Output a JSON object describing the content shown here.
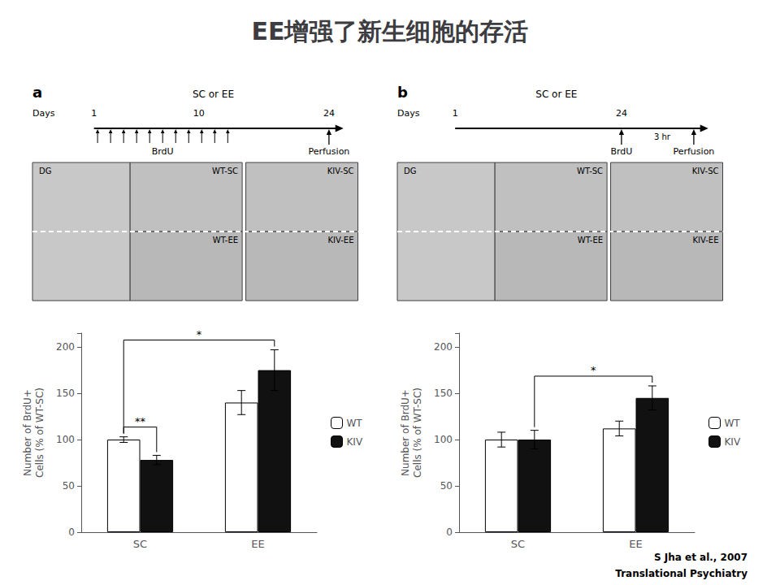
{
  "title": "EE增强了新生细胞的存活",
  "annotations": [
    "S Jha et al., 2007",
    "Translational Psychiatry"
  ],
  "chart_data": [
    {
      "type": "bar",
      "categories": [
        "SC",
        "EE"
      ],
      "series": [
        {
          "name": "WT",
          "color": "#FFFFFF",
          "values": [
            100,
            140
          ],
          "errors": [
            3,
            13
          ]
        },
        {
          "name": "KIV",
          "color": "#111111",
          "values": [
            78,
            175
          ],
          "errors": [
            5,
            22
          ]
        }
      ],
      "ylabel": "Number of BrdU+\nCells (% of WT-SC)",
      "ylim": [
        0,
        215
      ],
      "yticks": [
        0,
        50,
        100,
        150,
        200
      ],
      "grid": false,
      "legend": "right",
      "annotations": [
        "a",
        "SC or EE",
        "Days",
        "1",
        "10",
        "24",
        "BrdU",
        "Perfusion",
        "DG",
        "WT-SC",
        "KIV-SC",
        "WT-EE",
        "KIV-EE",
        "**",
        "*"
      ]
    },
    {
      "type": "bar",
      "categories": [
        "SC",
        "EE"
      ],
      "series": [
        {
          "name": "WT",
          "color": "#FFFFFF",
          "values": [
            100,
            112
          ],
          "errors": [
            8,
            8
          ]
        },
        {
          "name": "KIV",
          "color": "#111111",
          "values": [
            100,
            145
          ],
          "errors": [
            10,
            13
          ]
        }
      ],
      "ylabel": "Number of BrdU+\nCells (% of WT-SC)",
      "ylim": [
        0,
        215
      ],
      "yticks": [
        0,
        50,
        100,
        150,
        200
      ],
      "grid": false,
      "legend": "right",
      "annotations": [
        "b",
        "SC or EE",
        "Days",
        "1",
        "24",
        "BrdU",
        "3 hr",
        "Perfusion",
        "DG",
        "WT-SC",
        "KIV-SC",
        "WT-EE",
        "KIV-EE",
        "*"
      ]
    }
  ]
}
